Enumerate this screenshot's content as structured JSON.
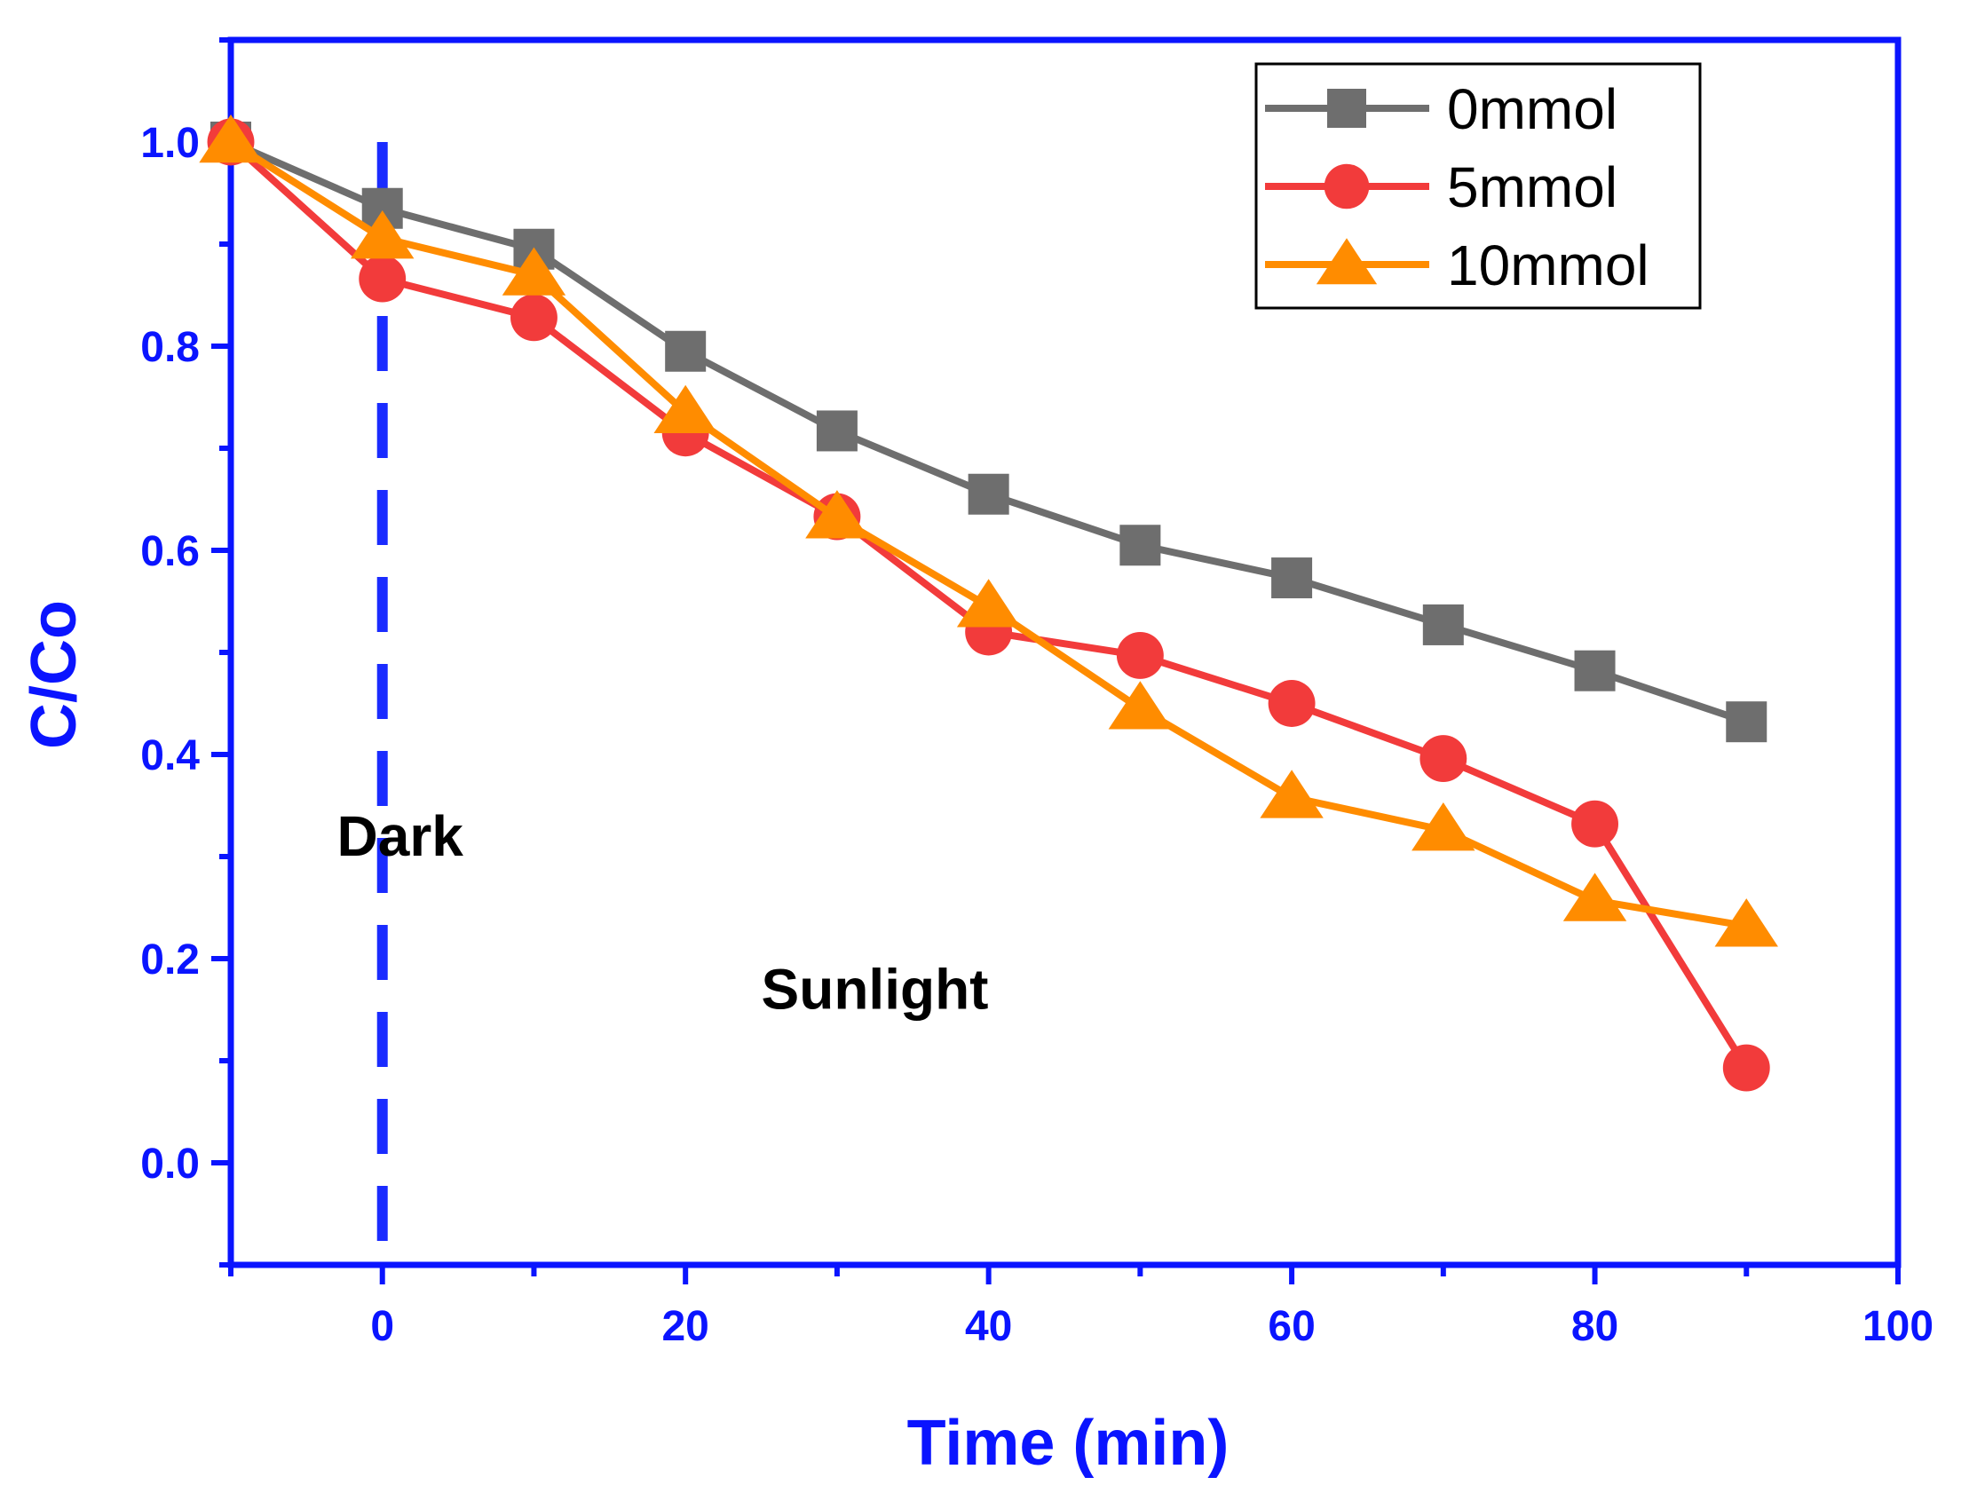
{
  "chart_data": {
    "type": "line",
    "xlabel": "Time (min)",
    "ylabel": "C/Co",
    "xlim": [
      -10,
      100
    ],
    "ylim": [
      -0.1,
      1.1
    ],
    "xticks": [
      0,
      20,
      40,
      60,
      80,
      100
    ],
    "yticks": [
      0.0,
      0.2,
      0.4,
      0.6,
      0.8,
      1.0
    ],
    "xtick_labels": [
      "0",
      "20",
      "40",
      "60",
      "80",
      "100"
    ],
    "ytick_labels": [
      "0.0",
      "0.2",
      "0.4",
      "0.6",
      "0.8",
      "1.0"
    ],
    "x": [
      -10,
      0,
      10,
      20,
      30,
      40,
      50,
      60,
      70,
      80,
      90
    ],
    "series": [
      {
        "name": "0mmol",
        "marker": "square",
        "color": "#6e6e6e",
        "values": [
          1.0,
          0.935,
          0.895,
          0.795,
          0.717,
          0.655,
          0.605,
          0.573,
          0.527,
          0.482,
          0.432
        ]
      },
      {
        "name": "5mmol",
        "marker": "circle",
        "color": "#f23b3b",
        "values": [
          1.0,
          0.866,
          0.828,
          0.715,
          0.633,
          0.52,
          0.497,
          0.45,
          0.396,
          0.332,
          0.093
        ]
      },
      {
        "name": "10mmol",
        "marker": "triangle",
        "color": "#ff8c00",
        "values": [
          1.0,
          0.906,
          0.87,
          0.735,
          0.632,
          0.545,
          0.445,
          0.358,
          0.326,
          0.257,
          0.232
        ]
      }
    ],
    "divider": {
      "x": 0,
      "style": "dashed",
      "color": "#1a2bff"
    },
    "annotations": [
      {
        "text": "Dark",
        "x": -3,
        "y": 0.32
      },
      {
        "text": "Sunlight",
        "x": 25,
        "y": 0.17
      }
    ],
    "legend_position": "top-right",
    "grid": false,
    "axis_color": "#0a14ff"
  }
}
